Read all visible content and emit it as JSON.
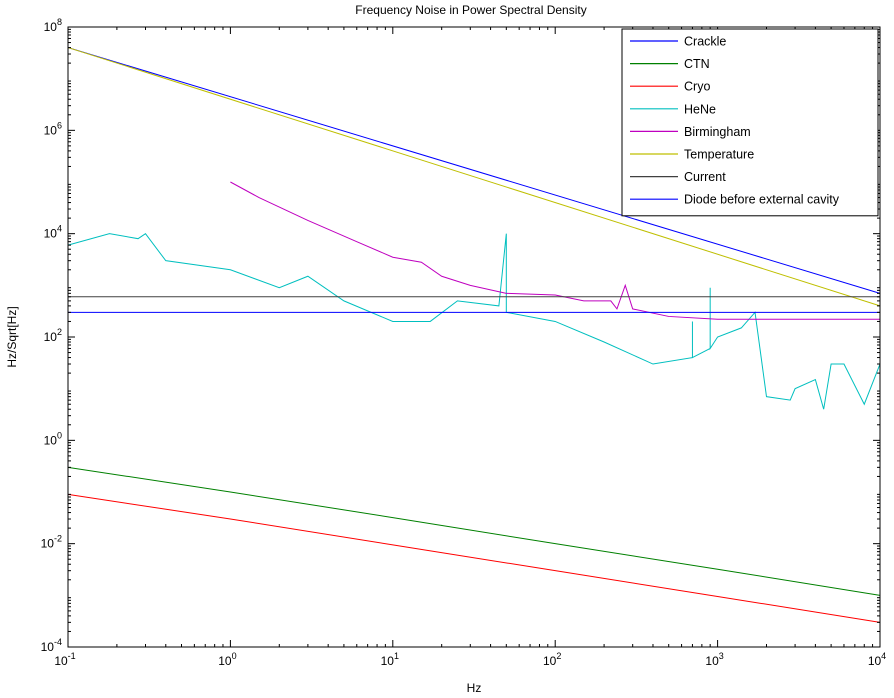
{
  "chart_data": {
    "type": "line",
    "title": "Frequency Noise in Power Spectral Density",
    "xlabel": "Hz",
    "ylabel": "Hz/Sqrt[Hz]",
    "xscale": "log",
    "yscale": "log",
    "xlim": [
      0.1,
      10000
    ],
    "ylim": [
      0.0001,
      100000000
    ],
    "x_ticks": [
      {
        "value": 0.1,
        "base": "10",
        "exp": "-1"
      },
      {
        "value": 1,
        "base": "10",
        "exp": "0"
      },
      {
        "value": 10,
        "base": "10",
        "exp": "1"
      },
      {
        "value": 100,
        "base": "10",
        "exp": "2"
      },
      {
        "value": 1000,
        "base": "10",
        "exp": "3"
      },
      {
        "value": 10000,
        "base": "10",
        "exp": "4"
      }
    ],
    "y_ticks": [
      {
        "value": 0.0001,
        "base": "10",
        "exp": "-4"
      },
      {
        "value": 0.01,
        "base": "10",
        "exp": "-2"
      },
      {
        "value": 1,
        "base": "10",
        "exp": "0"
      },
      {
        "value": 100,
        "base": "10",
        "exp": "2"
      },
      {
        "value": 10000,
        "base": "10",
        "exp": "4"
      },
      {
        "value": 1000000,
        "base": "10",
        "exp": "6"
      },
      {
        "value": 100000000,
        "base": "10",
        "exp": "8"
      }
    ],
    "grid": false,
    "legend_position": "top-right",
    "series": [
      {
        "name": "Crackle",
        "color": "#0000ff",
        "x": [
          0.1,
          10000
        ],
        "y": [
          40000000,
          700
        ]
      },
      {
        "name": "CTN",
        "color": "#008000",
        "x": [
          0.1,
          1,
          10,
          100,
          1000,
          10000
        ],
        "y": [
          0.3,
          0.1,
          0.032,
          0.01,
          0.0032,
          0.001
        ]
      },
      {
        "name": "Cryo",
        "color": "#ff0000",
        "x": [
          0.1,
          1,
          10,
          100,
          1000,
          10000
        ],
        "y": [
          0.09,
          0.03,
          0.0095,
          0.003,
          0.00095,
          0.0003
        ]
      },
      {
        "name": "HeNe",
        "color": "#00bfbf",
        "x": [
          0.1,
          0.18,
          0.27,
          0.3,
          0.4,
          1,
          2,
          3,
          5,
          10,
          17,
          25,
          45,
          50,
          50,
          50,
          50,
          100,
          200,
          400,
          700,
          700,
          700,
          900,
          900,
          900,
          900,
          1000,
          1400,
          1700,
          2000,
          2800,
          3000,
          4000,
          4500,
          5000,
          6000,
          8000,
          10000
        ],
        "y": [
          6000,
          10000,
          8000,
          10000,
          3000,
          2000,
          900,
          1500,
          500,
          200,
          200,
          500,
          400,
          10000,
          1000,
          4000,
          300,
          200,
          80,
          30,
          40,
          200,
          40,
          60,
          900,
          60,
          60,
          100,
          150,
          300,
          7,
          6,
          10,
          15,
          4,
          30,
          30,
          5,
          30
        ]
      },
      {
        "name": "Birmingham",
        "color": "#bf00bf",
        "x": [
          1,
          1.5,
          3,
          6,
          10,
          15,
          20,
          30,
          50,
          100,
          150,
          220,
          240,
          270,
          300,
          500,
          1000,
          10000
        ],
        "y": [
          100000,
          50000,
          18000,
          7000,
          3500,
          2800,
          1500,
          1000,
          700,
          650,
          500,
          500,
          350,
          1000,
          350,
          250,
          220,
          220
        ]
      },
      {
        "name": "Temperature",
        "color": "#bfbf00",
        "x": [
          0.1,
          10000
        ],
        "y": [
          40000000,
          400
        ]
      },
      {
        "name": "Current",
        "color": "#404040",
        "x": [
          0.1,
          10000
        ],
        "y": [
          600,
          600
        ]
      },
      {
        "name": "Diode before external cavity",
        "color": "#0000ff",
        "x": [
          0.1,
          10000
        ],
        "y": [
          300,
          300
        ]
      }
    ]
  }
}
